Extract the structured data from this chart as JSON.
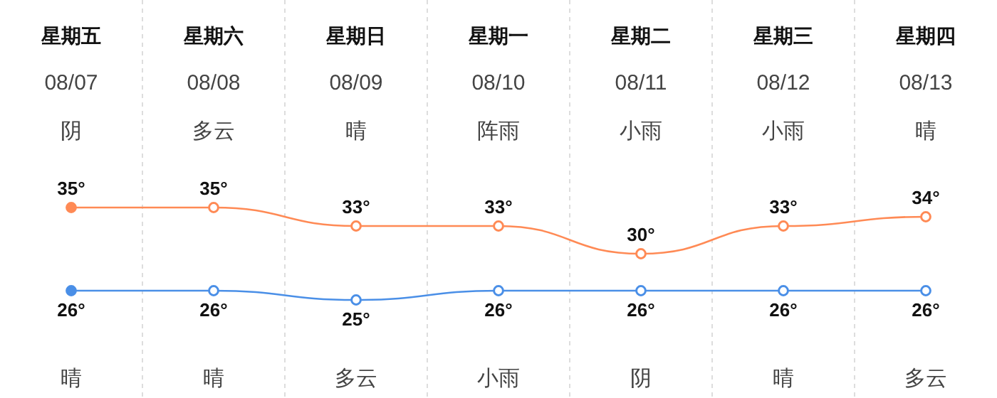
{
  "chart_data": {
    "type": "line",
    "categories": [
      "星期五",
      "星期六",
      "星期日",
      "星期一",
      "星期二",
      "星期三",
      "星期四"
    ],
    "series": [
      {
        "color": "#ff8a55",
        "values": [
          35,
          35,
          33,
          33,
          30,
          33,
          34
        ],
        "value_labels": [
          "35°",
          "35°",
          "33°",
          "33°",
          "30°",
          "33°",
          "34°"
        ]
      },
      {
        "color": "#4a8fe7",
        "values": [
          26,
          26,
          25,
          26,
          26,
          26,
          26
        ],
        "value_labels": [
          "26°",
          "26°",
          "25°",
          "26°",
          "26°",
          "26°",
          "26°"
        ]
      }
    ],
    "marker": "circle",
    "grid": "x",
    "annotations": [
      "08/07",
      "08/08",
      "08/09",
      "08/10",
      "08/11",
      "08/12",
      "08/13",
      "阴",
      "多云",
      "晴",
      "阵雨",
      "小雨",
      "小雨",
      "晴",
      "晴",
      "晴",
      "多云",
      "小雨",
      "阴",
      "晴",
      "多云"
    ]
  }
}
